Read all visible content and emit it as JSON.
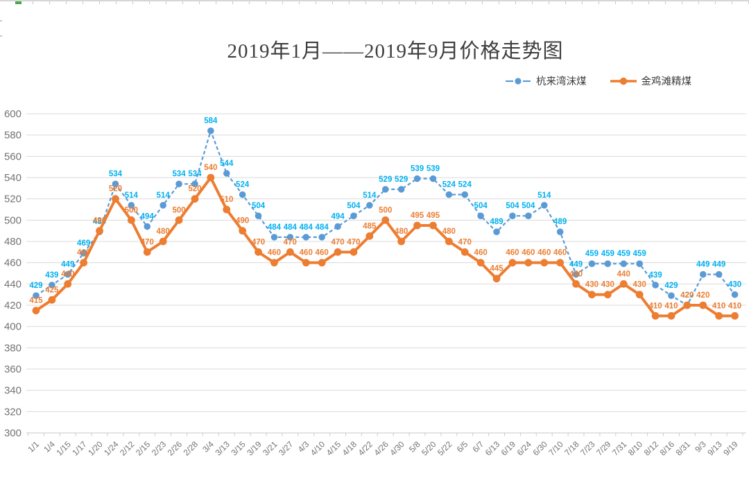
{
  "chart_data": {
    "type": "line",
    "title": "2019年1月——2019年9月价格走势图",
    "xlabel": "",
    "ylabel": "",
    "ylim": [
      300,
      600
    ],
    "ytick_step": 20,
    "grid": true,
    "data_labels": true,
    "legend_position": "top-right",
    "axis_text_color": "#737373",
    "grid_color": "#d9d9d9",
    "categories": [
      "1/1",
      "1/4",
      "1/15",
      "1/17",
      "1/20",
      "1/24",
      "2/12",
      "2/15",
      "2/23",
      "2/26",
      "2/28",
      "3/4",
      "3/13",
      "3/15",
      "3/19",
      "3/21",
      "3/27",
      "4/3",
      "4/10",
      "4/15",
      "4/18",
      "4/22",
      "4/26",
      "4/30",
      "5/8",
      "5/20",
      "5/22",
      "6/5",
      "6/7",
      "6/13",
      "6/19",
      "6/24",
      "6/30",
      "7/10",
      "7/18",
      "7/23",
      "7/29",
      "7/31",
      "8/10",
      "8/12",
      "8/16",
      "8/31",
      "9/3",
      "9/13",
      "9/19"
    ],
    "series": [
      {
        "name": "杭来湾沫煤",
        "style": "dashed",
        "marker": "circle",
        "color": "#5B9BD5",
        "label_color": "#00B0F0",
        "values": [
          429,
          439,
          449,
          469,
          489,
          534,
          514,
          494,
          514,
          534,
          534,
          584,
          544,
          524,
          504,
          484,
          484,
          484,
          484,
          494,
          504,
          514,
          529,
          529,
          539,
          539,
          524,
          524,
          504,
          489,
          504,
          504,
          514,
          489,
          449,
          459,
          459,
          459,
          459,
          439,
          429,
          420,
          449,
          449,
          430
        ]
      },
      {
        "name": "金鸡滩精煤",
        "style": "solid",
        "marker": "circle",
        "color": "#ED7D31",
        "label_color": "#ED7D31",
        "values": [
          415,
          425,
          440,
          460,
          490,
          520,
          500,
          470,
          480,
          500,
          520,
          540,
          510,
          490,
          470,
          460,
          470,
          460,
          460,
          470,
          470,
          485,
          500,
          480,
          495,
          495,
          480,
          470,
          460,
          445,
          460,
          460,
          460,
          460,
          440,
          430,
          430,
          440,
          430,
          410,
          410,
          420,
          420,
          410,
          410
        ]
      }
    ]
  }
}
